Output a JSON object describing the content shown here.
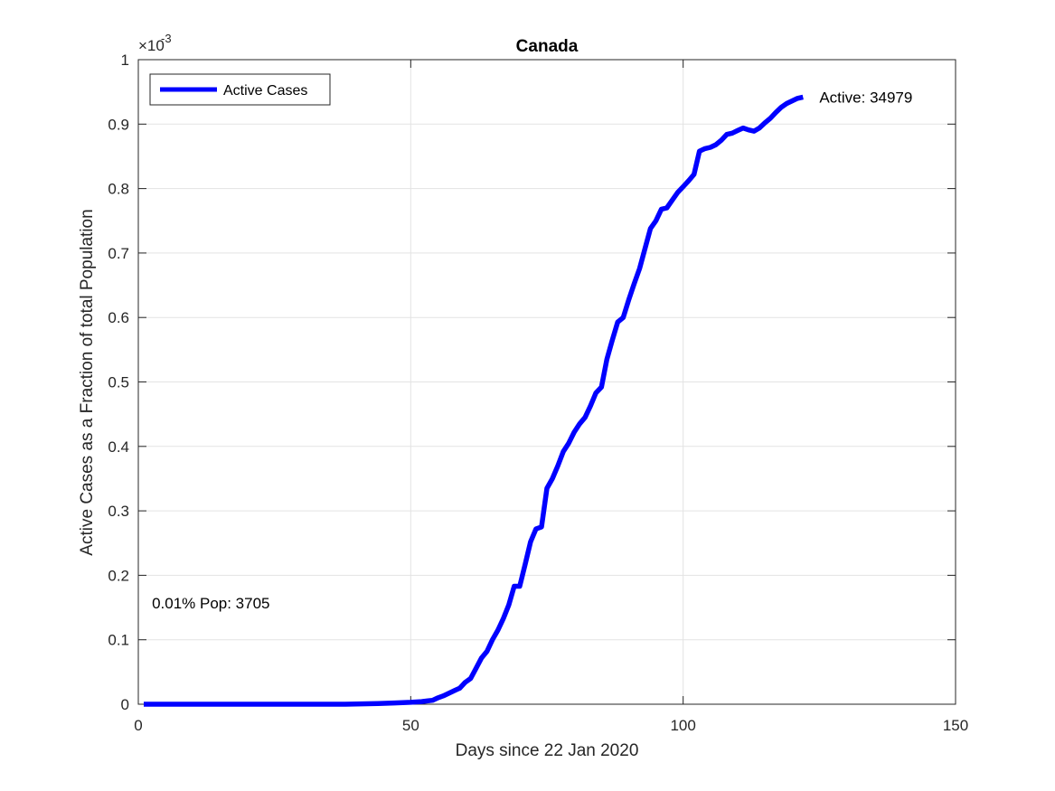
{
  "chart_data": {
    "type": "line",
    "title": "Canada",
    "xlabel": "Days since 22 Jan 2020",
    "ylabel": "Active Cases as a Fraction of total Population",
    "y_exponent_label": "×10",
    "y_exponent_power": "-3",
    "xlim": [
      0,
      150
    ],
    "ylim": [
      0,
      1
    ],
    "x_ticks": [
      0,
      50,
      100,
      150
    ],
    "x_tick_labels": [
      "0",
      "50",
      "100",
      "150"
    ],
    "y_ticks": [
      0,
      0.1,
      0.2,
      0.3,
      0.4,
      0.5,
      0.6,
      0.7,
      0.8,
      0.9,
      1
    ],
    "y_tick_labels": [
      "0",
      "0.1",
      "0.2",
      "0.3",
      "0.4",
      "0.5",
      "0.6",
      "0.7",
      "0.8",
      "0.9",
      "1"
    ],
    "grid": true,
    "legend_position": "top-left",
    "series": [
      {
        "name": "Active Cases",
        "color": "#0000ff",
        "x": [
          1,
          10,
          20,
          30,
          38,
          44,
          47,
          50,
          52,
          53,
          54,
          55,
          56,
          57,
          58,
          59,
          60,
          61,
          62,
          63,
          64,
          65,
          66,
          67,
          68,
          69,
          70,
          71,
          72,
          73,
          74,
          75,
          76,
          77,
          78,
          79,
          80,
          81,
          82,
          83,
          84,
          85,
          86,
          87,
          88,
          89,
          90,
          91,
          92,
          93,
          94,
          95,
          96,
          97,
          98,
          99,
          100,
          101,
          102,
          103,
          104,
          105,
          106,
          107,
          108,
          109,
          110,
          111,
          112,
          113,
          114,
          115,
          116,
          117,
          118,
          119,
          120,
          121,
          122
        ],
        "values": [
          0.0,
          0.0,
          0.0,
          0.0,
          0.0,
          0.001,
          0.002,
          0.003,
          0.004,
          0.005,
          0.006,
          0.01,
          0.013,
          0.017,
          0.021,
          0.025,
          0.034,
          0.04,
          0.056,
          0.072,
          0.082,
          0.1,
          0.115,
          0.133,
          0.154,
          0.183,
          0.183,
          0.217,
          0.252,
          0.272,
          0.275,
          0.335,
          0.35,
          0.37,
          0.392,
          0.405,
          0.422,
          0.435,
          0.445,
          0.463,
          0.483,
          0.492,
          0.535,
          0.565,
          0.593,
          0.6,
          0.627,
          0.652,
          0.676,
          0.707,
          0.738,
          0.75,
          0.768,
          0.77,
          0.782,
          0.794,
          0.803,
          0.812,
          0.822,
          0.858,
          0.862,
          0.864,
          0.868,
          0.875,
          0.884,
          0.886,
          0.89,
          0.894,
          0.891,
          0.889,
          0.894,
          0.902,
          0.909,
          0.918,
          0.926,
          0.932,
          0.936,
          0.94,
          0.942
        ]
      }
    ],
    "annotations": [
      {
        "text": "Active: 34979",
        "x": 125,
        "y": 0.942
      },
      {
        "text": "0.01% Pop: 3705",
        "x": 2.5,
        "y": 0.157
      }
    ]
  }
}
